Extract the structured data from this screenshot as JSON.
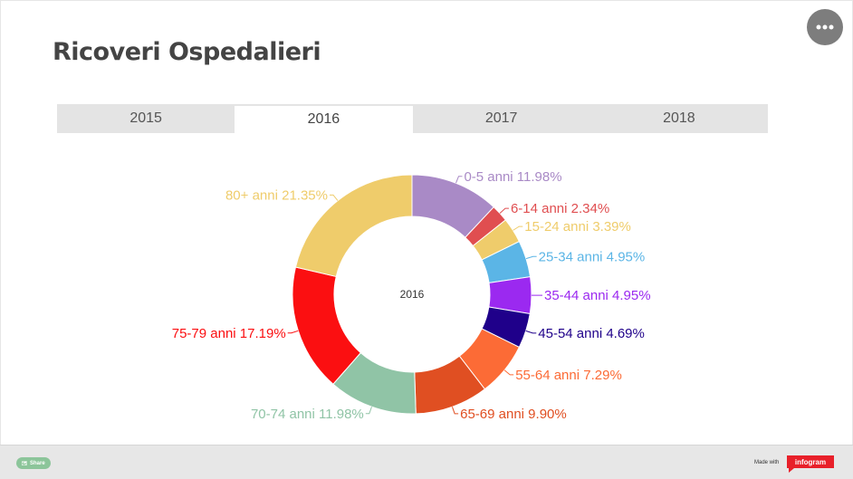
{
  "page": {
    "title": "Ricoveri Ospedalieri"
  },
  "tabs": [
    {
      "label": "2015",
      "active": false
    },
    {
      "label": "2016",
      "active": true
    },
    {
      "label": "2017",
      "active": false
    },
    {
      "label": "2018",
      "active": false
    }
  ],
  "menu": {
    "icon": "more-horizontal-icon"
  },
  "chart_data": {
    "type": "pie",
    "donut": true,
    "center_label": "2016",
    "legend": "none",
    "slices": [
      {
        "label": "0-5 anni 11.98%",
        "value": 11.98,
        "color": "#a98ac6"
      },
      {
        "label": "6-14 anni 2.34%",
        "value": 2.34,
        "color": "#e04e50"
      },
      {
        "label": "15-24 anni 3.39%",
        "value": 3.39,
        "color": "#efcc6b"
      },
      {
        "label": "25-34 anni 4.95%",
        "value": 4.95,
        "color": "#5bb5e6"
      },
      {
        "label": "35-44 anni 4.95%",
        "value": 4.95,
        "color": "#9b29f0"
      },
      {
        "label": "45-54 anni 4.69%",
        "value": 4.69,
        "color": "#1f008a"
      },
      {
        "label": "55-64 anni 7.29%",
        "value": 7.29,
        "color": "#fc6b36"
      },
      {
        "label": "65-69 anni 9.90%",
        "value": 9.9,
        "color": "#e04f22"
      },
      {
        "label": "70-74 anni 11.98%",
        "value": 11.98,
        "color": "#90c4a6"
      },
      {
        "label": "75-79 anni 17.19%",
        "value": 17.19,
        "color": "#fb0f11"
      },
      {
        "label": "80+ anni 21.35%",
        "value": 21.35,
        "color": "#efcc6b"
      }
    ]
  },
  "footer": {
    "share_label": "Share",
    "made_with": "Made with",
    "brand": "infogram",
    "share_icon": "share-icon"
  }
}
